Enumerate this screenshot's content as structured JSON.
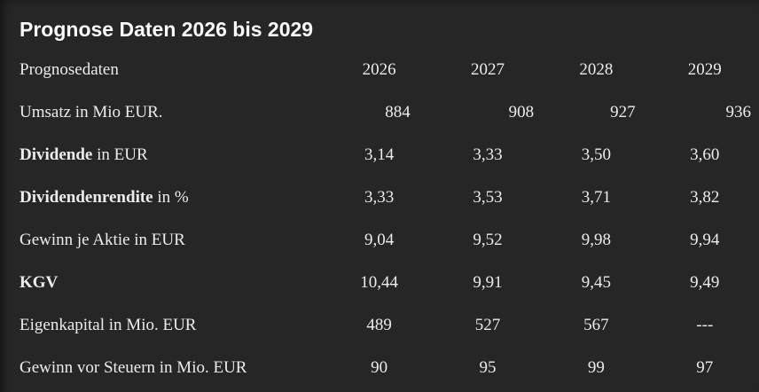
{
  "title": "Prognose Daten 2026 bis 2029",
  "header": {
    "label": "Prognosedaten",
    "years": [
      "2026",
      "2027",
      "2028",
      "2029"
    ]
  },
  "rows": [
    {
      "label_bold": "",
      "label_rest": "Umsatz in Mio EUR.",
      "values": [
        "884",
        "908",
        "927",
        "936"
      ],
      "align": "right"
    },
    {
      "label_bold": "Dividende",
      "label_rest": " in EUR",
      "values": [
        "3,14",
        "3,33",
        "3,50",
        "3,60"
      ],
      "align": "center"
    },
    {
      "label_bold": "Dividendenrendite",
      "label_rest": " in %",
      "values": [
        "3,33",
        "3,53",
        "3,71",
        "3,82"
      ],
      "align": "center"
    },
    {
      "label_bold": "",
      "label_rest": "Gewinn je Aktie in EUR",
      "values": [
        "9,04",
        "9,52",
        "9,98",
        "9,94"
      ],
      "align": "center"
    },
    {
      "label_bold": "KGV",
      "label_rest": "",
      "values": [
        "10,44",
        "9,91",
        "9,45",
        "9,49"
      ],
      "align": "center"
    },
    {
      "label_bold": "",
      "label_rest": "Eigenkapital in Mio. EUR",
      "values": [
        "489",
        "527",
        "567",
        "---"
      ],
      "align": "center"
    },
    {
      "label_bold": "",
      "label_rest": "Gewinn vor Steuern in Mio. EUR",
      "values": [
        "90",
        "95",
        "99",
        "97"
      ],
      "align": "center"
    }
  ],
  "colors": {
    "background": "#262626",
    "text": "#ececec",
    "title": "#fafafa"
  }
}
